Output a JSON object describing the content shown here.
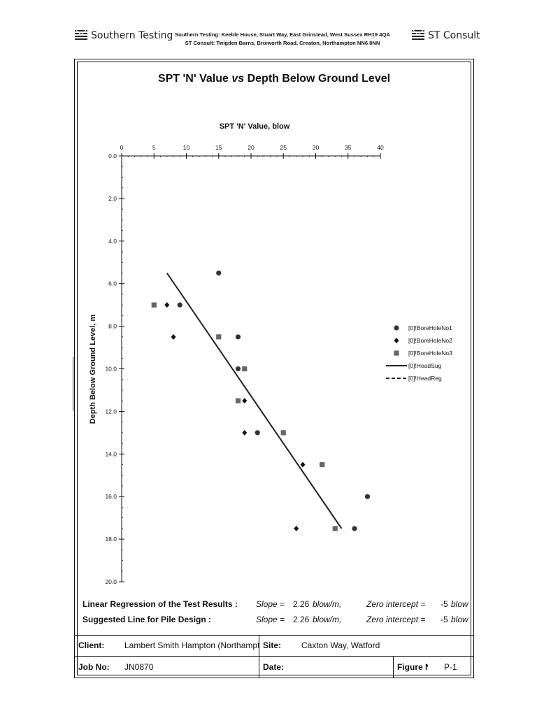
{
  "header": {
    "left_logo_text": "Southern Testing",
    "address_line1": "Southern Testing: Keeble House, Stuart Way, East Grinstead, West Sussex RH19 4QA",
    "address_line2": "ST Consult: Twigden Barns, Brixworth Road, Creaton, Northampton NN6 8NN",
    "right_logo_text": "ST Consult"
  },
  "chart_title": {
    "part1": "SPT 'N' Value ",
    "part2": "vs",
    "part3": " Depth Below Ground Level"
  },
  "chart_data": {
    "type": "scatter",
    "xlabel": "SPT 'N' Value, blow",
    "ylabel": "Depth Below Ground Level, m",
    "xlim": [
      0,
      40
    ],
    "ylim": [
      0,
      20
    ],
    "y_inverted": true,
    "x_axis_position": "top",
    "xticks": [
      "0",
      "5",
      "10",
      "15",
      "20",
      "25",
      "30",
      "35",
      "40"
    ],
    "yticks": [
      "0.0",
      "2.0",
      "4.0",
      "6.0",
      "8.0",
      "10.0",
      "12.0",
      "14.0",
      "16.0",
      "18.0",
      "20.0"
    ],
    "legend_position": "right",
    "series": [
      {
        "name": "[0]!BoreHoleNo1",
        "marker": "circle",
        "color": "#333333",
        "points": [
          [
            15,
            5.5
          ],
          [
            9,
            7.0
          ],
          [
            18,
            8.5
          ],
          [
            18,
            10.0
          ],
          [
            21,
            13.0
          ],
          [
            38,
            16.0
          ],
          [
            36,
            17.5
          ]
        ]
      },
      {
        "name": "[0]!BoreHoleNo2",
        "marker": "diamond",
        "color": "#111111",
        "points": [
          [
            7,
            7.0
          ],
          [
            8,
            8.5
          ],
          [
            19,
            11.5
          ],
          [
            19,
            13.0
          ],
          [
            28,
            14.5
          ],
          [
            27,
            17.5
          ]
        ]
      },
      {
        "name": "[0]!BoreHoleNo3",
        "marker": "square",
        "color": "#666666",
        "points": [
          [
            5,
            7.0
          ],
          [
            15,
            8.5
          ],
          [
            19,
            10.0
          ],
          [
            18,
            11.5
          ],
          [
            25,
            13.0
          ],
          [
            31,
            14.5
          ],
          [
            33,
            17.5
          ]
        ]
      },
      {
        "name": "[0]!HeadSug",
        "style": "solid-line",
        "color": "#222222",
        "points": [
          [
            7,
            5.5
          ],
          [
            34,
            17.5
          ]
        ]
      },
      {
        "name": "[0]!HeadReg",
        "style": "dashed-line",
        "color": "#222222",
        "points": []
      }
    ]
  },
  "regression": {
    "row1": {
      "label": "Linear Regression of the Test Results :",
      "slope_label": "Slope =",
      "slope_value": "2.26",
      "slope_unit": "blow/m,",
      "intercept_label": "Zero intercept =",
      "intercept_value": "-5",
      "intercept_unit": "blow"
    },
    "row2": {
      "label": "Suggested Line for Pile Design :",
      "slope_label": "Slope =",
      "slope_value": "2.26",
      "slope_unit": "blow/m,",
      "intercept_label": "Zero intercept =",
      "intercept_value": "-5",
      "intercept_unit": "blow"
    }
  },
  "info": {
    "client_label": "Client:",
    "client_value": "Lambert Smith Hampton (Northampto",
    "site_label": "Site:",
    "site_value": "Caxton Way, Watford",
    "job_label": "Job No:",
    "job_value": "JN0870",
    "date_label": "Date:",
    "date_value": "",
    "figure_label": "Figure N",
    "figure_value": "P-1"
  }
}
